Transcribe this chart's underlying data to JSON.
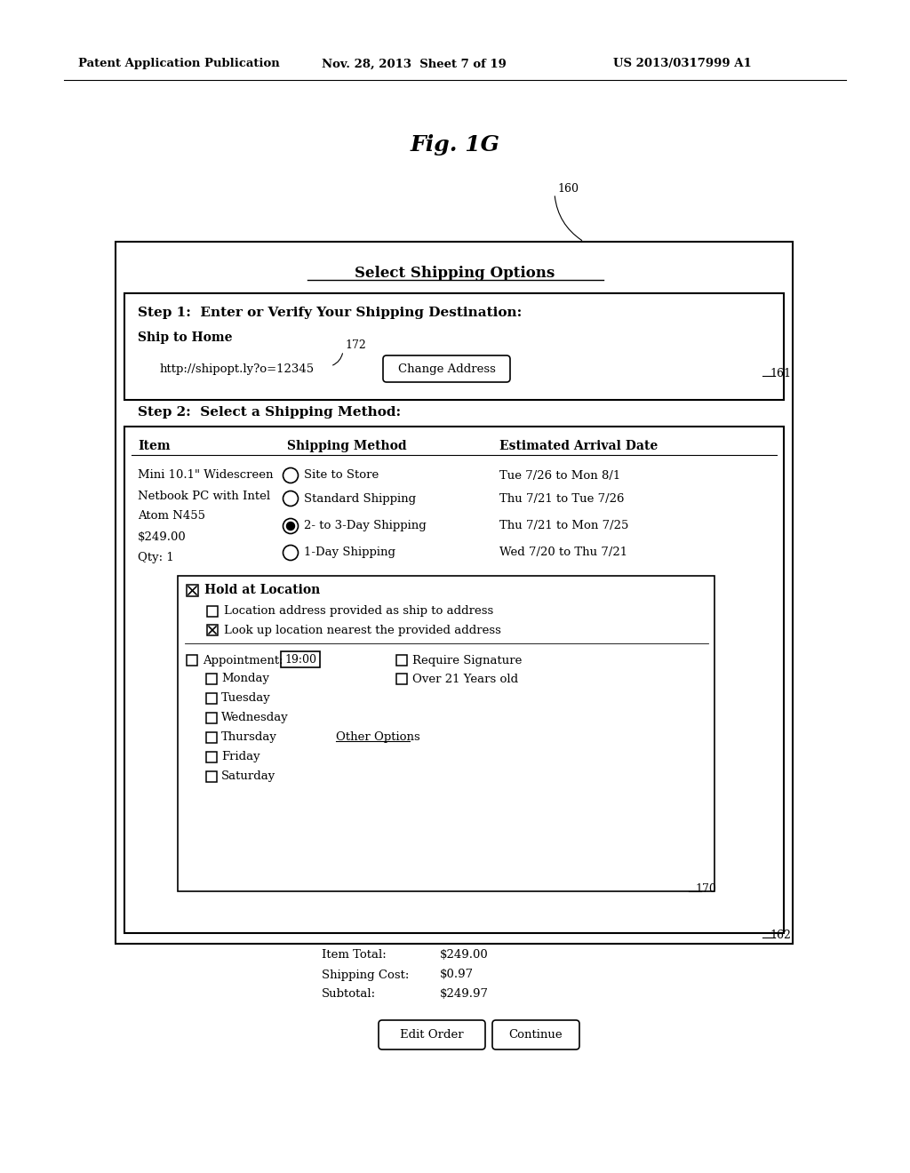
{
  "bg_color": "#ffffff",
  "header_left": "Patent Application Publication",
  "header_mid": "Nov. 28, 2013  Sheet 7 of 19",
  "header_right": "US 2013/0317999 A1",
  "fig_label": "Fig. 1G",
  "ref_160": "160",
  "ref_161": "161",
  "ref_162": "162",
  "ref_170": "170",
  "ref_172": "172",
  "page_title": "Select Shipping Options",
  "step1_text": "Step 1:  Enter or Verify Your Shipping Destination:",
  "ship_to_home": "Ship to Home",
  "url": "http://shipopt.ly?o=12345",
  "change_address_btn": "Change Address",
  "step2_text": "Step 2:  Select a Shipping Method:",
  "col1_hdr": "Item",
  "col2_hdr": "Shipping Method",
  "col3_hdr": "Estimated Arrival Date",
  "item_lines": [
    "Mini 10.1\" Widescreen",
    "Netbook PC with Intel",
    "Atom N455",
    "$249.00",
    "Qty: 1"
  ],
  "shipping_options": [
    {
      "label": "Site to Store",
      "date": "Tue 7/26 to Mon 8/1",
      "selected": false
    },
    {
      "label": "Standard Shipping",
      "date": "Thu 7/21 to Tue 7/26",
      "selected": false
    },
    {
      "label": "2- to 3-Day Shipping",
      "date": "Thu 7/21 to Mon 7/25",
      "selected": true
    },
    {
      "label": "1-Day Shipping",
      "date": "Wed 7/20 to Thu 7/21",
      "selected": false
    }
  ],
  "hold_label": "Hold at Location",
  "loc_opt1": "Location address provided as ship to address",
  "loc_opt2": "Look up location nearest the provided address",
  "appt_label": "Appointment:",
  "appt_time": "19:00",
  "req_sig": "Require Signature",
  "over21": "Over 21 Years old",
  "days": [
    "Monday",
    "Tuesday",
    "Wednesday",
    "Thursday",
    "Friday",
    "Saturday"
  ],
  "other_options": "Other Options",
  "item_total_label": "Item Total:",
  "item_total_val": "$249.00",
  "shipping_cost_label": "Shipping Cost:",
  "shipping_cost_val": "$0.97",
  "subtotal_label": "Subtotal:",
  "subtotal_val": "$249.97",
  "edit_order_btn": "Edit Order",
  "continue_btn": "Continue"
}
